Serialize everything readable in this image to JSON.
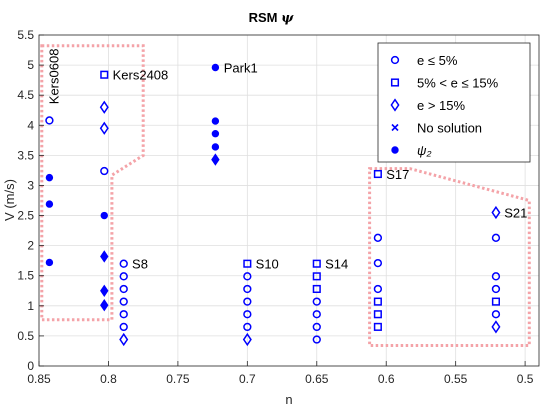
{
  "chart_data": {
    "type": "scatter",
    "title": "RSM",
    "title_symbol": "ψ",
    "xlabel": "n",
    "ylabel": "V (m/s)",
    "xlim": [
      0.85,
      0.49
    ],
    "x_reversed": true,
    "ylim": [
      0,
      5.5
    ],
    "xticks": [
      "0.85",
      "0.8",
      "0.75",
      "0.7",
      "0.65",
      "0.6",
      "0.55",
      "0.5"
    ],
    "xtick_values": [
      0.85,
      0.8,
      0.75,
      0.7,
      0.65,
      0.6,
      0.55,
      0.5
    ],
    "yticks": [
      "0",
      "0.5",
      "1",
      "1.5",
      "2",
      "2.5",
      "3",
      "3.5",
      "4",
      "4.5",
      "5",
      "5.5"
    ],
    "ytick_values": [
      0,
      0.5,
      1,
      1.5,
      2,
      2.5,
      3,
      3.5,
      4,
      4.5,
      5,
      5.5
    ],
    "grid": true,
    "legend_position": "top-right",
    "marker_color": "#0000ff",
    "region_color": "#f4a3a8",
    "series": [
      {
        "name": "e ≤ 5%",
        "marker": "circle-open",
        "points": [
          [
            0.8425,
            4.08
          ],
          [
            0.803,
            3.24
          ],
          [
            0.789,
            1.7
          ],
          [
            0.789,
            1.49
          ],
          [
            0.789,
            1.28
          ],
          [
            0.789,
            1.07
          ],
          [
            0.789,
            0.86
          ],
          [
            0.789,
            0.65
          ],
          [
            0.7,
            1.49
          ],
          [
            0.7,
            1.28
          ],
          [
            0.7,
            1.07
          ],
          [
            0.7,
            0.86
          ],
          [
            0.7,
            0.65
          ],
          [
            0.65,
            1.07
          ],
          [
            0.65,
            0.86
          ],
          [
            0.65,
            0.65
          ],
          [
            0.65,
            0.44
          ],
          [
            0.606,
            2.13
          ],
          [
            0.606,
            1.71
          ],
          [
            0.606,
            1.28
          ],
          [
            0.521,
            2.13
          ],
          [
            0.521,
            1.49
          ],
          [
            0.521,
            1.28
          ],
          [
            0.521,
            0.86
          ]
        ]
      },
      {
        "name": "5% < e ≤ 15%",
        "marker": "square-open",
        "points": [
          [
            0.803,
            4.84
          ],
          [
            0.7,
            1.7
          ],
          [
            0.65,
            1.7
          ],
          [
            0.65,
            1.49
          ],
          [
            0.65,
            1.28
          ],
          [
            0.606,
            3.19
          ],
          [
            0.606,
            1.07
          ],
          [
            0.606,
            0.86
          ],
          [
            0.606,
            0.65
          ],
          [
            0.521,
            1.07
          ]
        ]
      },
      {
        "name": "e > 15%",
        "marker": "diamond-open",
        "points": [
          [
            0.803,
            4.3
          ],
          [
            0.803,
            3.95
          ],
          [
            0.789,
            0.44
          ],
          [
            0.7,
            0.44
          ],
          [
            0.521,
            2.55
          ],
          [
            0.521,
            0.65
          ]
        ]
      },
      {
        "name": "No solution",
        "marker": "x",
        "points": []
      },
      {
        "name": "ψ₂",
        "marker": "circle-filled",
        "points": [
          [
            0.8425,
            3.13
          ],
          [
            0.8425,
            2.69
          ],
          [
            0.8425,
            1.72
          ],
          [
            0.803,
            2.5
          ],
          [
            0.723,
            4.96
          ],
          [
            0.723,
            4.07
          ],
          [
            0.723,
            3.86
          ],
          [
            0.723,
            3.64
          ]
        ]
      },
      {
        "name": "",
        "marker": "diamond-filled",
        "points": [
          [
            0.803,
            1.82
          ],
          [
            0.803,
            1.25
          ],
          [
            0.803,
            1.01
          ],
          [
            0.723,
            3.43
          ]
        ]
      }
    ],
    "annotations": [
      {
        "text": "Kers0608",
        "x": 0.8425,
        "y": 4.35,
        "rotated": true
      },
      {
        "text": "Kers2408",
        "x": 0.797,
        "y": 4.84
      },
      {
        "text": "Park1",
        "x": 0.717,
        "y": 4.96
      },
      {
        "text": "S8",
        "x": 0.783,
        "y": 1.7
      },
      {
        "text": "S10",
        "x": 0.694,
        "y": 1.7
      },
      {
        "text": "S14",
        "x": 0.644,
        "y": 1.7
      },
      {
        "text": "S17",
        "x": 0.6,
        "y": 3.19
      },
      {
        "text": "S21",
        "x": 0.515,
        "y": 2.55
      }
    ],
    "regions": [
      {
        "points": [
          [
            0.848,
            5.32
          ],
          [
            0.775,
            5.32
          ],
          [
            0.775,
            3.5
          ],
          [
            0.7975,
            3.17
          ],
          [
            0.7975,
            0.77
          ],
          [
            0.848,
            0.77
          ]
        ]
      },
      {
        "points": [
          [
            0.612,
            3.28
          ],
          [
            0.583,
            3.28
          ],
          [
            0.497,
            2.75
          ],
          [
            0.497,
            0.34
          ],
          [
            0.612,
            0.34
          ]
        ]
      }
    ]
  }
}
